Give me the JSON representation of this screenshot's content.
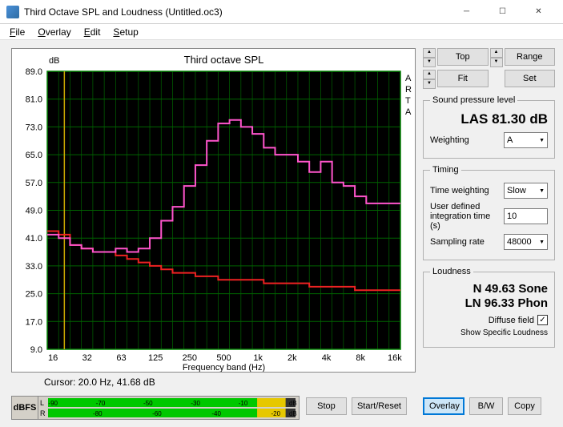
{
  "window": {
    "title": "Third Octave SPL and Loudness (Untitled.oc3)"
  },
  "menu": {
    "file": "File",
    "overlay": "Overlay",
    "edit": "Edit",
    "setup": "Setup"
  },
  "chart": {
    "title": "Third octave SPL",
    "y_label": "dB",
    "x_label": "Frequency band (Hz)",
    "side_label": "ARTA",
    "bg": "#000000",
    "grid_color": "#006400",
    "axis_color": "#008000",
    "text_color": "#000000",
    "series_pink": "#ff55cc",
    "series_red": "#ee2222",
    "cursor_line": "#ccaa00",
    "y_min": 9.0,
    "y_max": 89.0,
    "y_step": 8.0,
    "y_ticks": [
      "89.0",
      "81.0",
      "73.0",
      "65.0",
      "57.0",
      "49.0",
      "41.0",
      "33.0",
      "25.0",
      "17.0",
      "9.0"
    ],
    "x_ticks": [
      "16",
      "32",
      "63",
      "125",
      "250",
      "500",
      "1k",
      "2k",
      "4k",
      "8k",
      "16k"
    ],
    "band_count": 31,
    "pink_values": [
      42,
      41,
      39,
      38,
      37,
      37,
      38,
      37,
      38,
      41,
      46,
      50,
      56,
      62,
      69,
      74,
      75,
      73,
      71,
      67,
      65,
      65,
      63,
      60,
      63,
      57,
      56,
      53,
      51,
      51,
      51
    ],
    "red_values": [
      43,
      42,
      39,
      38,
      37,
      37,
      36,
      35,
      34,
      33,
      32,
      31,
      31,
      30,
      30,
      29,
      29,
      29,
      29,
      28,
      28,
      28,
      28,
      27,
      27,
      27,
      27,
      26,
      26,
      26,
      26
    ]
  },
  "cursor": {
    "text": "Cursor:  20.0 Hz, 41.68 dB"
  },
  "controls": {
    "top": "Top",
    "fit": "Fit",
    "range": "Range",
    "set": "Set",
    "spl_group": "Sound pressure level",
    "las_value": "LAS 81.30 dB",
    "weighting_label": "Weighting",
    "weighting_value": "A",
    "timing_group": "Timing",
    "time_weighting_label": "Time weighting",
    "time_weighting_value": "Slow",
    "integration_label": "User defined integration time (s)",
    "integration_value": "10",
    "sampling_label": "Sampling rate",
    "sampling_value": "48000",
    "loudness_group": "Loudness",
    "n_value": "N 49.63 Sone",
    "ln_value": "LN 96.33 Phon",
    "diffuse_label": "Diffuse field",
    "diffuse_checked": "✓",
    "show_label": "Show Specific Loudness"
  },
  "meter": {
    "label": "dBFS",
    "L": "L",
    "R": "R",
    "ticks_top": [
      "-90",
      "-70",
      "-50",
      "-30",
      "-10"
    ],
    "ticks_bot": [
      "-80",
      "-60",
      "-40",
      "-20"
    ],
    "green": "#00c800",
    "yellow": "#e6c800",
    "bar_fill": 0.96
  },
  "buttons": {
    "stop": "Stop",
    "start": "Start/Reset",
    "overlay": "Overlay",
    "bw": "B/W",
    "copy": "Copy"
  }
}
